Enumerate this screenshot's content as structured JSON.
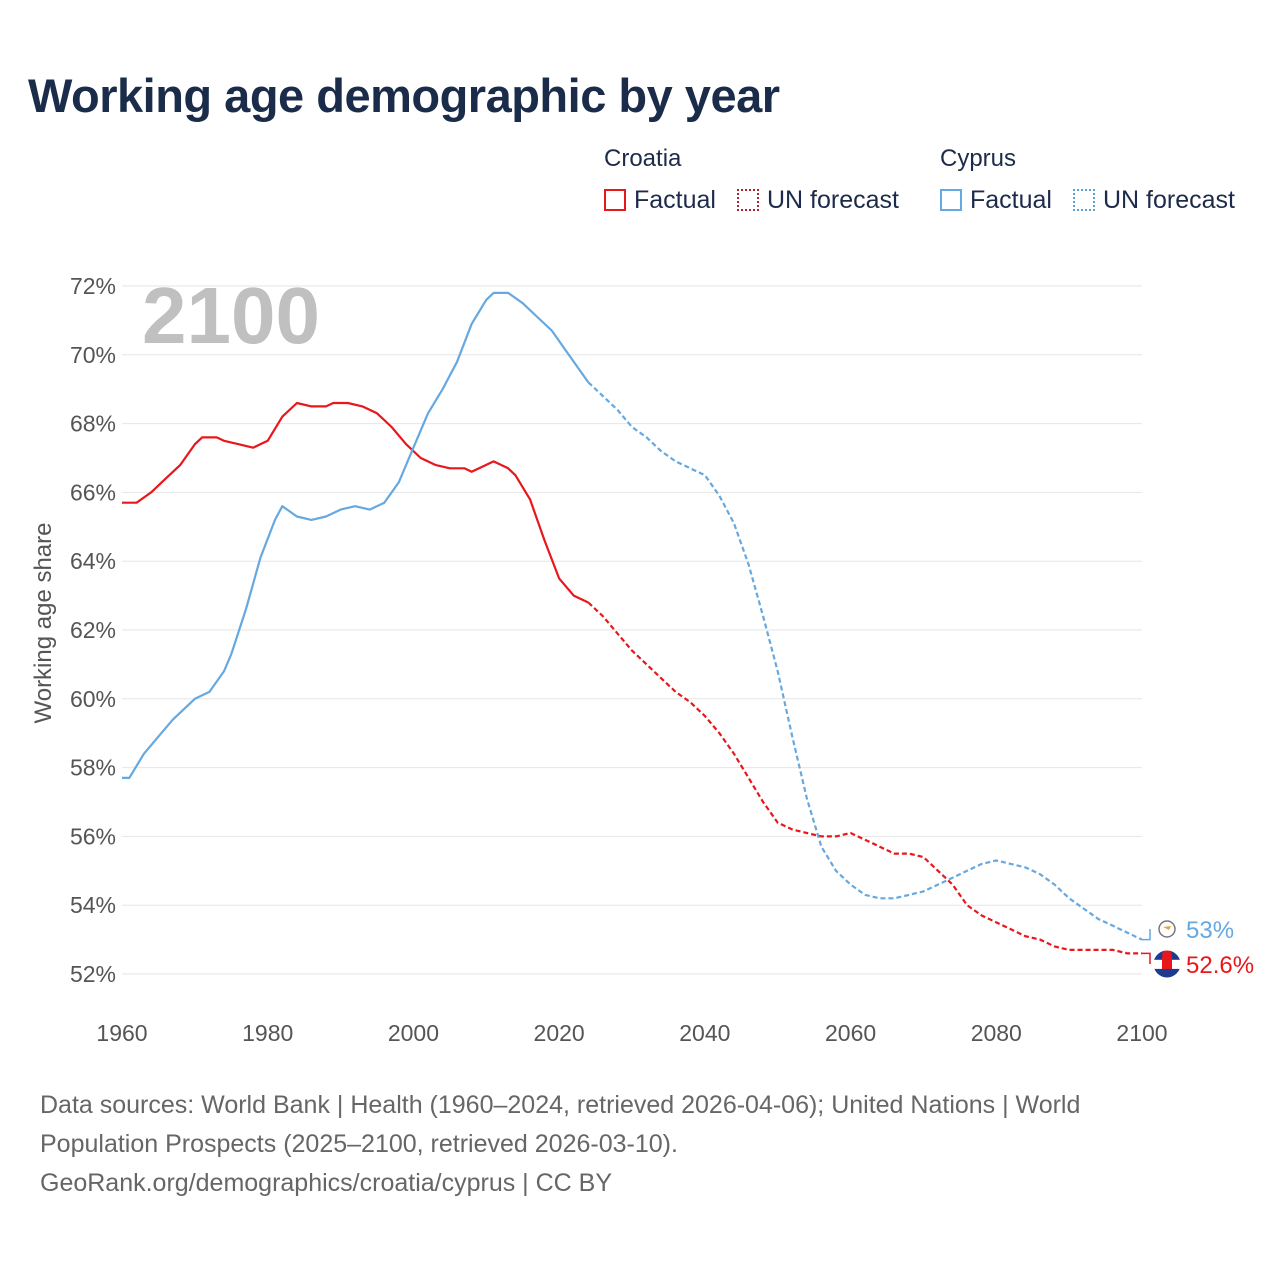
{
  "title": "Working age demographic by year",
  "legend": {
    "groups": [
      {
        "name": "Croatia",
        "factual": "Factual",
        "forecast": "UN forecast"
      },
      {
        "name": "Cyprus",
        "factual": "Factual",
        "forecast": "UN forecast"
      }
    ]
  },
  "year_watermark": "2100",
  "footer": {
    "line1": "Data sources: World Bank | Health (1960–2024, retrieved 2026-04-06); United Nations | World Population Prospects (2025–2100, retrieved 2026-03-10).",
    "line2": "GeoRank.org/demographics/croatia/cyprus | CC BY"
  },
  "colors": {
    "croatia": "#e8171c",
    "cyprus": "#66a8e0",
    "grid": "#e6e6e6",
    "title": "#1b2c4b"
  },
  "chart_data": {
    "type": "line",
    "title": "Working age demographic by year",
    "xlabel": "",
    "ylabel": "Working age share",
    "xlim": [
      1960,
      2100
    ],
    "ylim": [
      52,
      72
    ],
    "x_ticks": [
      1960,
      1980,
      2000,
      2020,
      2040,
      2060,
      2080,
      2100
    ],
    "y_ticks": [
      52,
      54,
      56,
      58,
      60,
      62,
      64,
      66,
      68,
      70,
      72
    ],
    "y_tick_labels": [
      "52%",
      "54%",
      "56%",
      "58%",
      "60%",
      "62%",
      "64%",
      "66%",
      "68%",
      "70%",
      "72%"
    ],
    "factual_range": [
      1960,
      2024
    ],
    "forecast_range": [
      2024,
      2100
    ],
    "series": [
      {
        "name": "Croatia",
        "end_label": "52.6%",
        "points": [
          [
            1960,
            65.7
          ],
          [
            1962,
            65.7
          ],
          [
            1964,
            66.0
          ],
          [
            1966,
            66.4
          ],
          [
            1968,
            66.8
          ],
          [
            1970,
            67.4
          ],
          [
            1971,
            67.6
          ],
          [
            1973,
            67.6
          ],
          [
            1974,
            67.5
          ],
          [
            1976,
            67.4
          ],
          [
            1978,
            67.3
          ],
          [
            1980,
            67.5
          ],
          [
            1982,
            68.2
          ],
          [
            1984,
            68.6
          ],
          [
            1986,
            68.5
          ],
          [
            1988,
            68.5
          ],
          [
            1989,
            68.6
          ],
          [
            1991,
            68.6
          ],
          [
            1993,
            68.5
          ],
          [
            1995,
            68.3
          ],
          [
            1997,
            67.9
          ],
          [
            1999,
            67.4
          ],
          [
            2001,
            67.0
          ],
          [
            2003,
            66.8
          ],
          [
            2005,
            66.7
          ],
          [
            2007,
            66.7
          ],
          [
            2008,
            66.6
          ],
          [
            2011,
            66.9
          ],
          [
            2013,
            66.7
          ],
          [
            2014,
            66.5
          ],
          [
            2016,
            65.8
          ],
          [
            2018,
            64.6
          ],
          [
            2020,
            63.5
          ],
          [
            2022,
            63.0
          ],
          [
            2024,
            62.8
          ],
          [
            2026,
            62.4
          ],
          [
            2028,
            61.9
          ],
          [
            2030,
            61.4
          ],
          [
            2032,
            61.0
          ],
          [
            2034,
            60.6
          ],
          [
            2036,
            60.2
          ],
          [
            2038,
            59.9
          ],
          [
            2040,
            59.5
          ],
          [
            2042,
            59.0
          ],
          [
            2044,
            58.4
          ],
          [
            2046,
            57.7
          ],
          [
            2048,
            57.0
          ],
          [
            2050,
            56.4
          ],
          [
            2052,
            56.2
          ],
          [
            2054,
            56.1
          ],
          [
            2056,
            56.0
          ],
          [
            2058,
            56.0
          ],
          [
            2060,
            56.1
          ],
          [
            2062,
            55.9
          ],
          [
            2064,
            55.7
          ],
          [
            2066,
            55.5
          ],
          [
            2068,
            55.5
          ],
          [
            2070,
            55.4
          ],
          [
            2072,
            55.0
          ],
          [
            2074,
            54.6
          ],
          [
            2076,
            54.0
          ],
          [
            2078,
            53.7
          ],
          [
            2080,
            53.5
          ],
          [
            2082,
            53.3
          ],
          [
            2084,
            53.1
          ],
          [
            2086,
            53.0
          ],
          [
            2088,
            52.8
          ],
          [
            2090,
            52.7
          ],
          [
            2092,
            52.7
          ],
          [
            2094,
            52.7
          ],
          [
            2096,
            52.7
          ],
          [
            2098,
            52.6
          ],
          [
            2100,
            52.6
          ]
        ]
      },
      {
        "name": "Cyprus",
        "end_label": "53%",
        "points": [
          [
            1960,
            57.7
          ],
          [
            1961,
            57.7
          ],
          [
            1963,
            58.4
          ],
          [
            1965,
            58.9
          ],
          [
            1967,
            59.4
          ],
          [
            1969,
            59.8
          ],
          [
            1970,
            60.0
          ],
          [
            1972,
            60.2
          ],
          [
            1974,
            60.8
          ],
          [
            1975,
            61.3
          ],
          [
            1977,
            62.6
          ],
          [
            1979,
            64.1
          ],
          [
            1981,
            65.2
          ],
          [
            1982,
            65.6
          ],
          [
            1984,
            65.3
          ],
          [
            1986,
            65.2
          ],
          [
            1988,
            65.3
          ],
          [
            1990,
            65.5
          ],
          [
            1992,
            65.6
          ],
          [
            1994,
            65.5
          ],
          [
            1996,
            65.7
          ],
          [
            1998,
            66.3
          ],
          [
            2000,
            67.3
          ],
          [
            2002,
            68.3
          ],
          [
            2004,
            69.0
          ],
          [
            2006,
            69.8
          ],
          [
            2008,
            70.9
          ],
          [
            2010,
            71.6
          ],
          [
            2011,
            71.8
          ],
          [
            2013,
            71.8
          ],
          [
            2015,
            71.5
          ],
          [
            2017,
            71.1
          ],
          [
            2019,
            70.7
          ],
          [
            2021,
            70.1
          ],
          [
            2023,
            69.5
          ],
          [
            2024,
            69.2
          ],
          [
            2026,
            68.8
          ],
          [
            2028,
            68.4
          ],
          [
            2030,
            67.9
          ],
          [
            2032,
            67.6
          ],
          [
            2034,
            67.2
          ],
          [
            2036,
            66.9
          ],
          [
            2038,
            66.7
          ],
          [
            2040,
            66.5
          ],
          [
            2042,
            65.9
          ],
          [
            2044,
            65.1
          ],
          [
            2046,
            63.9
          ],
          [
            2048,
            62.4
          ],
          [
            2050,
            60.8
          ],
          [
            2052,
            58.9
          ],
          [
            2054,
            57.1
          ],
          [
            2056,
            55.7
          ],
          [
            2058,
            55.0
          ],
          [
            2060,
            54.6
          ],
          [
            2062,
            54.3
          ],
          [
            2064,
            54.2
          ],
          [
            2066,
            54.2
          ],
          [
            2068,
            54.3
          ],
          [
            2070,
            54.4
          ],
          [
            2072,
            54.6
          ],
          [
            2074,
            54.8
          ],
          [
            2076,
            55.0
          ],
          [
            2078,
            55.2
          ],
          [
            2080,
            55.3
          ],
          [
            2082,
            55.2
          ],
          [
            2084,
            55.1
          ],
          [
            2086,
            54.9
          ],
          [
            2088,
            54.6
          ],
          [
            2090,
            54.2
          ],
          [
            2092,
            53.9
          ],
          [
            2094,
            53.6
          ],
          [
            2096,
            53.4
          ],
          [
            2098,
            53.2
          ],
          [
            2100,
            53.0
          ]
        ]
      }
    ]
  }
}
